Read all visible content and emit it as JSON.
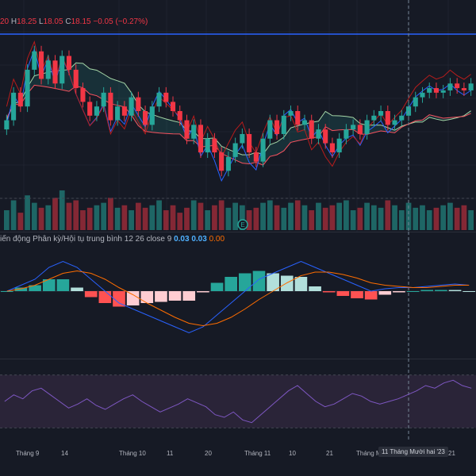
{
  "ohlc_legend": {
    "open_value": "20",
    "high_key": "H",
    "high_value": "18.25",
    "low_key": "L",
    "low_value": "18.05",
    "close_key": "C",
    "close_value": "18.15",
    "change": "−0.05 (−0.27%)"
  },
  "macd_legend": {
    "title": "iến động Phân kỳ/Hội tụ trung bình",
    "params": "12 26 close 9",
    "macd": "0.03",
    "signal": "0.03",
    "histogram": "0.00"
  },
  "event_marker": {
    "label": "E"
  },
  "time_axis": {
    "ticks": [
      {
        "label": "Tháng 9"
      },
      {
        "label": "14"
      },
      {
        "label": "Tháng 10"
      },
      {
        "label": "11"
      },
      {
        "label": "20"
      },
      {
        "label": "Tháng 11"
      },
      {
        "label": "10"
      },
      {
        "label": "21"
      },
      {
        "label": "Tháng M"
      },
      {
        "label": "21"
      }
    ],
    "crosshair_label": "11 Tháng Mười hai '23"
  },
  "colors": {
    "background": "#161a25",
    "up": "#26a69a",
    "down": "#f23645",
    "macd": "#2962ff",
    "signal": "#ff6d00",
    "rsi": "#7e57c2",
    "rsi_band": "#2a2438",
    "horizontal_line": "#2962ff"
  },
  "chart_data": [
    {
      "type": "candlestick",
      "title": "",
      "close": [
        18.3,
        18.9,
        18.6,
        19.4,
        19.8,
        19.2,
        19.6,
        19.1,
        19.7,
        19.4,
        19.0,
        18.7,
        18.4,
        18.6,
        18.9,
        18.3,
        18.6,
        18.4,
        18.8,
        18.5,
        18.2,
        18.6,
        18.9,
        18.7,
        18.5,
        18.3,
        17.9,
        18.2,
        17.6,
        17.9,
        17.6,
        17.2,
        17.5,
        17.8,
        18.0,
        17.6,
        17.4,
        17.9,
        18.3,
        18.0,
        18.4,
        18.5,
        18.2,
        18.3,
        17.9,
        18.1,
        17.8,
        17.6,
        17.9,
        18.1,
        18.2,
        18.0,
        18.3,
        18.4,
        18.5,
        18.2,
        18.3,
        18.4,
        18.6,
        18.8,
        18.9,
        19.0,
        18.9,
        18.95,
        19.1,
        19.0,
        18.95,
        19.1
      ],
      "annotations": [
        "E"
      ]
    },
    {
      "type": "bar",
      "title": "Volume",
      "values": [
        40,
        60,
        35,
        70,
        55,
        45,
        50,
        65,
        80,
        55,
        60,
        40,
        45,
        50,
        55,
        65,
        45,
        50,
        40,
        55,
        45,
        50,
        60,
        40,
        50,
        35,
        45,
        60,
        55,
        40,
        50,
        60,
        45,
        55,
        50,
        40,
        45,
        55,
        60,
        50,
        45,
        55,
        60,
        50,
        40,
        55,
        45,
        50,
        55,
        60,
        40,
        45,
        55,
        50,
        45,
        60,
        50,
        40,
        55,
        45,
        50,
        40,
        45,
        50,
        55,
        45,
        50,
        40
      ]
    },
    {
      "type": "line",
      "title": "MACD 12 26 close 9",
      "series": [
        {
          "name": "MACD",
          "values": [
            0.0,
            0.05,
            0.1,
            0.2,
            0.25,
            0.2,
            0.1,
            0.0,
            -0.1,
            -0.15,
            -0.2,
            -0.25,
            -0.3,
            -0.35,
            -0.3,
            -0.2,
            -0.1,
            0.0,
            0.1,
            0.15,
            0.2,
            0.25,
            0.2,
            0.15,
            0.1,
            0.05,
            0.0,
            0.02,
            0.03,
            0.03,
            0.04,
            0.05,
            0.06,
            0.05
          ]
        },
        {
          "name": "Signal",
          "values": [
            0.0,
            0.02,
            0.05,
            0.1,
            0.15,
            0.17,
            0.15,
            0.1,
            0.03,
            -0.03,
            -0.1,
            -0.16,
            -0.22,
            -0.27,
            -0.29,
            -0.27,
            -0.22,
            -0.15,
            -0.07,
            0.0,
            0.07,
            0.13,
            0.16,
            0.16,
            0.14,
            0.11,
            0.07,
            0.05,
            0.04,
            0.03,
            0.03,
            0.04,
            0.05,
            0.05
          ]
        }
      ],
      "ylim": [
        -0.5,
        0.5
      ]
    },
    {
      "type": "line",
      "title": "RSI",
      "values": [
        50,
        55,
        52,
        58,
        60,
        55,
        50,
        45,
        48,
        52,
        47,
        44,
        48,
        52,
        55,
        50,
        46,
        42,
        45,
        48,
        52,
        49,
        46,
        40,
        38,
        42,
        36,
        34,
        40,
        46,
        52,
        58,
        62,
        56,
        50,
        46,
        48,
        52,
        56,
        54,
        50,
        48,
        50,
        52,
        55,
        58,
        62,
        60,
        64,
        66,
        62,
        60
      ]
    }
  ]
}
